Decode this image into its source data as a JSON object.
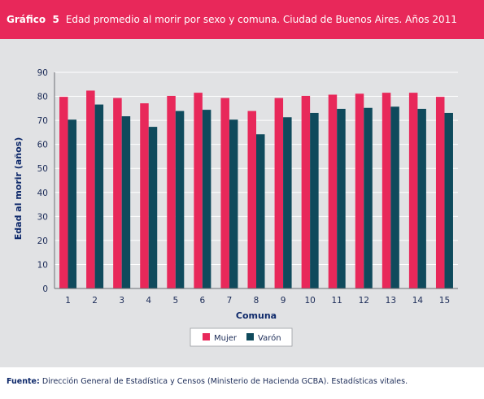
{
  "header": {
    "label": "Gráfico  5",
    "title": "Edad promedio al morir por sexo y comuna. Ciudad de Buenos Aires. Años 2011"
  },
  "footer": {
    "source_label": "Fuente:",
    "source_text": "Dirección General de Estadística y Censos (Ministerio de Hacienda GCBA). Estadísticas vitales."
  },
  "colors": {
    "header_bg": "#e8285a",
    "panel_bg": "#e1e2e4",
    "mujer": "#e8285a",
    "varon": "#0f4a5c",
    "axis_text": "#1b2b57"
  },
  "chart_data": {
    "type": "bar",
    "title": "",
    "xlabel": "Comuna",
    "ylabel": "Edad al morir (años)",
    "ylim": [
      0,
      90
    ],
    "yticks": [
      0,
      10,
      20,
      30,
      40,
      50,
      60,
      70,
      80,
      90
    ],
    "grid": true,
    "legend": "bottom",
    "categories": [
      "1",
      "2",
      "3",
      "4",
      "5",
      "6",
      "7",
      "8",
      "9",
      "10",
      "11",
      "12",
      "13",
      "14",
      "15"
    ],
    "series": [
      {
        "name": "Mujer",
        "color": "#e8285a",
        "values": [
          79.8,
          82.4,
          79.3,
          77.1,
          80.2,
          81.5,
          79.3,
          73.9,
          79.3,
          80.2,
          80.7,
          81.1,
          81.5,
          81.5,
          79.8
        ]
      },
      {
        "name": "Varón",
        "color": "#0f4a5c",
        "values": [
          70.3,
          76.6,
          71.7,
          67.3,
          73.9,
          74.4,
          70.3,
          64.2,
          71.3,
          73.1,
          74.8,
          75.2,
          75.7,
          74.8,
          73.1
        ]
      }
    ]
  }
}
